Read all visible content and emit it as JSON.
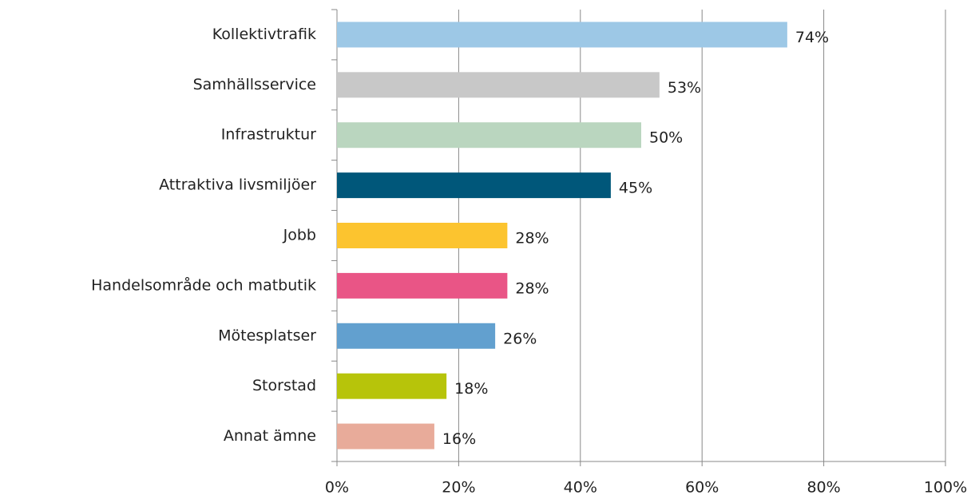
{
  "chart_data": {
    "type": "bar",
    "orientation": "horizontal",
    "categories": [
      "Kollektivtrafik",
      "Samhällsservice",
      "Infrastruktur",
      "Attraktiva livsmiljöer",
      "Jobb",
      "Handelsområde och matbutik",
      "Mötesplatser",
      "Storstad",
      "Annat ämne"
    ],
    "values": [
      74,
      53,
      50,
      45,
      28,
      28,
      26,
      18,
      16
    ],
    "value_labels": [
      "74%",
      "53%",
      "50%",
      "45%",
      "28%",
      "28%",
      "26%",
      "18%",
      "16%"
    ],
    "colors": [
      "#9dc8e6",
      "#c8c8c8",
      "#bad6bf",
      "#00577a",
      "#fcc42f",
      "#e95586",
      "#62a0cf",
      "#b7c40a",
      "#e8ab9a"
    ],
    "xlim": [
      0,
      100
    ],
    "xticks": [
      {
        "value": 0,
        "label": "0%"
      },
      {
        "value": 20,
        "label": "20%"
      },
      {
        "value": 40,
        "label": "40%"
      },
      {
        "value": 60,
        "label": "60%"
      },
      {
        "value": 80,
        "label": "80%"
      },
      {
        "value": 100,
        "label": "100%"
      }
    ],
    "grid": true
  }
}
